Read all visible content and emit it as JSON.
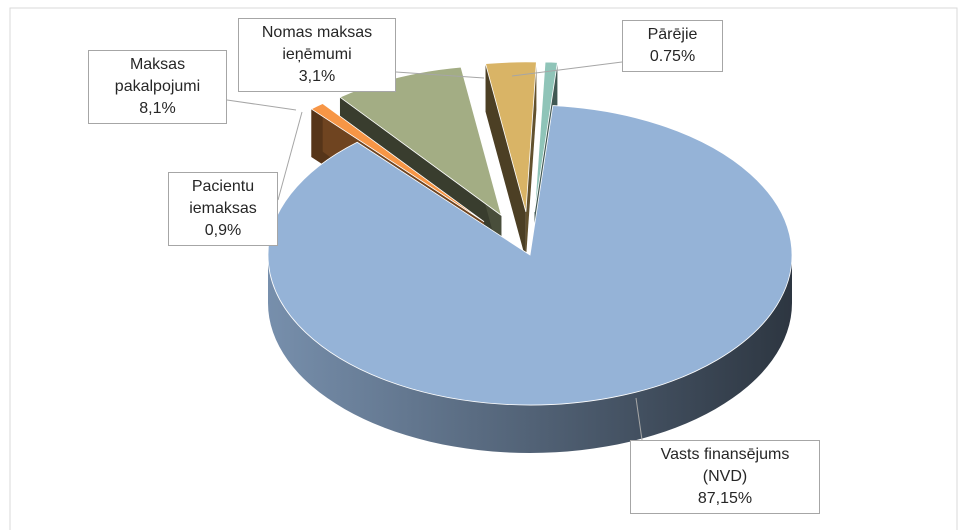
{
  "chart_data": {
    "type": "pie",
    "categories": [
      "Vasts finansējums (NVD)",
      "Pacientu iemaksas",
      "Maksas pakalpojumi",
      "Nomas maksas ieņēmumi",
      "Pārējie"
    ],
    "values": [
      87.15,
      0.9,
      8.1,
      3.1,
      0.75
    ],
    "value_labels": [
      "87,15%",
      "0,9%",
      "8,1%",
      "3,1%",
      "0.75%"
    ],
    "colors": [
      "#95b3d7",
      "#f79646",
      "#a3ad84",
      "#d9b466",
      "#8fc4b8"
    ]
  }
}
